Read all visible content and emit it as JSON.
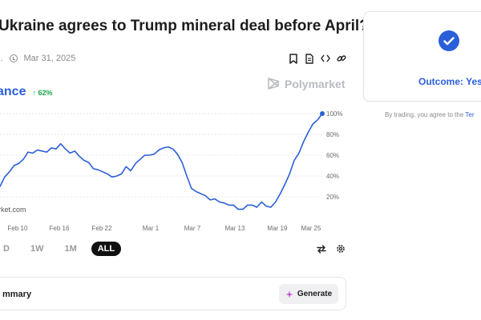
{
  "market": {
    "title": "Ukraine agrees to Trump mineral deal before April?",
    "meta_prefix": "l.",
    "end_date": "Mar 31, 2025"
  },
  "chance": {
    "label": "ance",
    "delta": "↑ 62%",
    "delta_color": "#1aa64a",
    "accent": "#2b5fd9"
  },
  "brand": {
    "name": "Polymarket"
  },
  "watermark": "rket.com",
  "icons": {
    "actions": [
      "bookmark-icon",
      "document-icon",
      "code-embed-icon",
      "link-icon"
    ],
    "chart_tools": [
      "swap-arrows-icon",
      "gear-icon"
    ],
    "generate": "sparkle-icon",
    "outcome": "check-circle-icon",
    "meta": "clock-icon",
    "brand": "polymarket-logo-icon"
  },
  "ranges": [
    "D",
    "1W",
    "1M",
    "ALL"
  ],
  "active_range": "ALL",
  "summary": {
    "label": "mmary",
    "generate_label": "Generate"
  },
  "outcome": {
    "text": "Outcome: Yes"
  },
  "terms": {
    "text": "By trading, you agree to the ",
    "link": "Ter"
  },
  "chart_data": {
    "type": "line",
    "x_ticks": [
      "Feb 10",
      "Feb 16",
      "Feb 22",
      "Mar 1",
      "Mar 7",
      "Mar 13",
      "Mar 19",
      "Mar 25"
    ],
    "y_ticks": [
      "100%",
      "80%",
      "60%",
      "40%",
      "20%"
    ],
    "ylim": [
      0,
      100
    ],
    "grid": "horizontal-dotted",
    "line_color": "#2b5fd9",
    "series": [
      {
        "values": [
          30,
          39,
          44,
          50,
          52,
          56,
          63,
          62,
          65,
          64,
          63,
          67,
          66,
          71,
          66,
          62,
          64,
          59,
          55,
          53,
          47,
          46,
          44,
          42,
          39,
          40,
          42,
          49,
          45,
          52,
          56,
          60,
          60,
          61,
          65,
          67,
          68,
          66,
          61,
          53,
          40,
          28,
          25,
          23,
          21,
          17,
          18,
          15,
          14,
          12,
          12,
          8,
          8,
          12,
          12,
          10,
          15,
          11,
          10,
          15,
          23,
          32,
          42,
          55,
          62,
          73,
          82,
          90,
          94,
          100
        ]
      }
    ]
  }
}
